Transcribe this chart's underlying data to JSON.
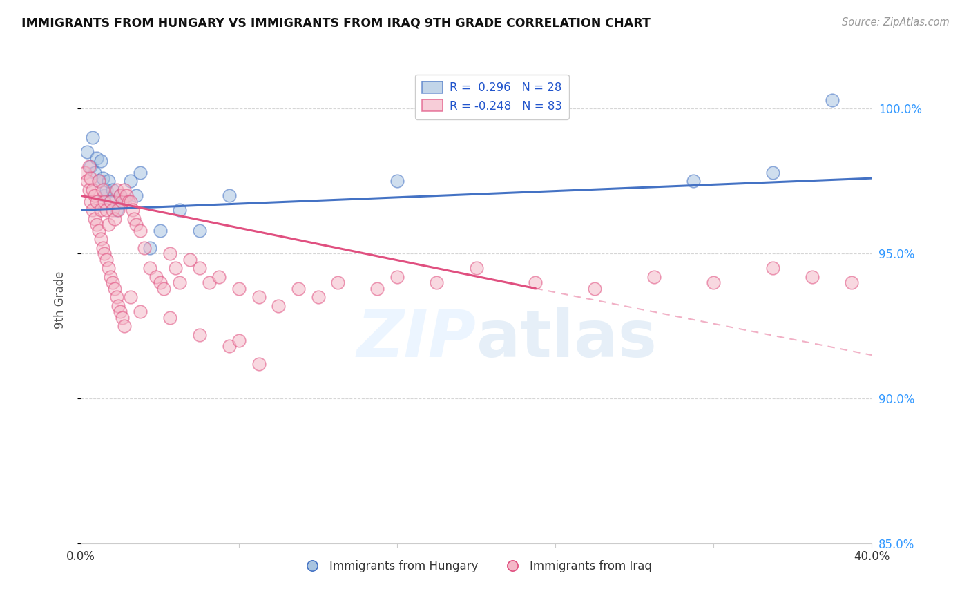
{
  "title": "IMMIGRANTS FROM HUNGARY VS IMMIGRANTS FROM IRAQ 9TH GRADE CORRELATION CHART",
  "source": "Source: ZipAtlas.com",
  "ylabel": "9th Grade",
  "xlim": [
    0.0,
    0.4
  ],
  "ylim": [
    0.875,
    1.018
  ],
  "yticks": [
    0.85,
    0.9,
    0.95,
    1.0
  ],
  "ytick_labels": [
    "85.0%",
    "90.0%",
    "95.0%",
    "100.0%"
  ],
  "xticks": [
    0.0,
    0.08,
    0.16,
    0.24,
    0.32,
    0.4
  ],
  "xtick_labels": [
    "0.0%",
    "",
    "",
    "",
    "",
    "40.0%"
  ],
  "hungary_R": 0.296,
  "hungary_N": 28,
  "iraq_R": -0.248,
  "iraq_N": 83,
  "hungary_color": "#a8c4e0",
  "iraq_color": "#f4b8c8",
  "hungary_line_color": "#4472c4",
  "iraq_line_color": "#e05080",
  "background_color": "#ffffff",
  "hungary_scatter_x": [
    0.003,
    0.005,
    0.006,
    0.007,
    0.008,
    0.009,
    0.01,
    0.011,
    0.012,
    0.013,
    0.014,
    0.015,
    0.016,
    0.018,
    0.02,
    0.022,
    0.025,
    0.028,
    0.03,
    0.035,
    0.04,
    0.05,
    0.06,
    0.075,
    0.16,
    0.31,
    0.35,
    0.38
  ],
  "hungary_scatter_y": [
    0.985,
    0.98,
    0.99,
    0.978,
    0.983,
    0.975,
    0.982,
    0.976,
    0.97,
    0.972,
    0.975,
    0.968,
    0.972,
    0.965,
    0.97,
    0.968,
    0.975,
    0.97,
    0.978,
    0.952,
    0.958,
    0.965,
    0.958,
    0.97,
    0.975,
    0.975,
    0.978,
    1.003
  ],
  "iraq_scatter_x": [
    0.002,
    0.003,
    0.004,
    0.004,
    0.005,
    0.005,
    0.006,
    0.006,
    0.007,
    0.007,
    0.008,
    0.008,
    0.009,
    0.009,
    0.01,
    0.01,
    0.011,
    0.011,
    0.012,
    0.012,
    0.013,
    0.013,
    0.014,
    0.014,
    0.015,
    0.015,
    0.016,
    0.016,
    0.017,
    0.017,
    0.018,
    0.018,
    0.019,
    0.019,
    0.02,
    0.02,
    0.021,
    0.021,
    0.022,
    0.022,
    0.023,
    0.024,
    0.025,
    0.026,
    0.027,
    0.028,
    0.03,
    0.032,
    0.035,
    0.038,
    0.04,
    0.042,
    0.045,
    0.048,
    0.05,
    0.055,
    0.06,
    0.065,
    0.07,
    0.08,
    0.09,
    0.1,
    0.11,
    0.12,
    0.13,
    0.15,
    0.16,
    0.18,
    0.2,
    0.23,
    0.26,
    0.29,
    0.32,
    0.35,
    0.37,
    0.39,
    0.045,
    0.06,
    0.075,
    0.09,
    0.025,
    0.03,
    0.08
  ],
  "iraq_scatter_y": [
    0.978,
    0.975,
    0.98,
    0.972,
    0.976,
    0.968,
    0.972,
    0.965,
    0.97,
    0.962,
    0.968,
    0.96,
    0.975,
    0.958,
    0.965,
    0.955,
    0.972,
    0.952,
    0.968,
    0.95,
    0.965,
    0.948,
    0.96,
    0.945,
    0.968,
    0.942,
    0.965,
    0.94,
    0.962,
    0.938,
    0.972,
    0.935,
    0.965,
    0.932,
    0.97,
    0.93,
    0.968,
    0.928,
    0.972,
    0.925,
    0.97,
    0.968,
    0.968,
    0.965,
    0.962,
    0.96,
    0.958,
    0.952,
    0.945,
    0.942,
    0.94,
    0.938,
    0.95,
    0.945,
    0.94,
    0.948,
    0.945,
    0.94,
    0.942,
    0.938,
    0.935,
    0.932,
    0.938,
    0.935,
    0.94,
    0.938,
    0.942,
    0.94,
    0.945,
    0.94,
    0.938,
    0.942,
    0.94,
    0.945,
    0.942,
    0.94,
    0.928,
    0.922,
    0.918,
    0.912,
    0.935,
    0.93,
    0.92
  ]
}
